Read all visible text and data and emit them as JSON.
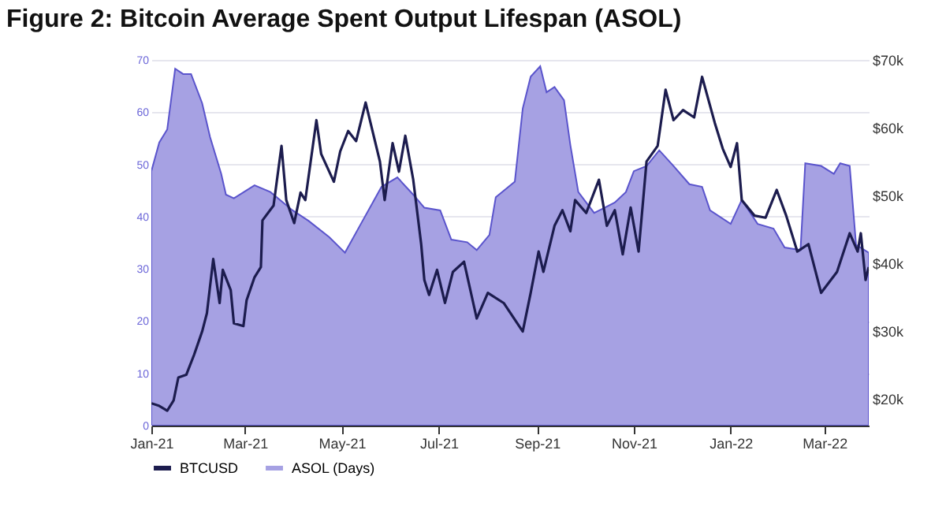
{
  "chart_data": {
    "type": "line",
    "title": "Figure 2: Bitcoin Average Spent Output Lifespan (ASOL)",
    "xlim": [
      "2021-01-01",
      "2022-03-29"
    ],
    "xticks": [
      {
        "value": "2021-01-01",
        "label": "Jan-21"
      },
      {
        "value": "2021-03-01",
        "label": "Mar-21"
      },
      {
        "value": "2021-05-01",
        "label": "May-21"
      },
      {
        "value": "2021-07-01",
        "label": "Jul-21"
      },
      {
        "value": "2021-09-01",
        "label": "Sep-21"
      },
      {
        "value": "2021-11-01",
        "label": "Nov-21"
      },
      {
        "value": "2022-01-01",
        "label": "Jan-22"
      },
      {
        "value": "2022-03-01",
        "label": "Mar-22"
      }
    ],
    "ylim": [
      0,
      70
    ],
    "yticks": [
      0,
      10,
      20,
      30,
      40,
      50,
      60,
      70
    ],
    "y2lim": [
      16000,
      70000
    ],
    "y2ticks": [
      {
        "value": 20000,
        "label": "$20k"
      },
      {
        "value": 30000,
        "label": "$30k"
      },
      {
        "value": 40000,
        "label": "$40k"
      },
      {
        "value": 50000,
        "label": "$50k"
      },
      {
        "value": 60000,
        "label": "$60k"
      },
      {
        "value": 70000,
        "label": "$70k"
      }
    ],
    "grid": "y",
    "legend": "bottom",
    "series": [
      {
        "name": "BTCUSD",
        "type": "line",
        "axis": "y2",
        "color": "#1c1c4e",
        "x": [
          "2021-01-01",
          "2021-01-06",
          "2021-01-11",
          "2021-01-15",
          "2021-01-18",
          "2021-01-23",
          "2021-01-28",
          "2021-02-02",
          "2021-02-05",
          "2021-02-09",
          "2021-02-13",
          "2021-02-15",
          "2021-02-20",
          "2021-02-22",
          "2021-02-28",
          "2021-03-02",
          "2021-03-07",
          "2021-03-11",
          "2021-03-12",
          "2021-03-19",
          "2021-03-24",
          "2021-03-27",
          "2021-04-01",
          "2021-04-05",
          "2021-04-08",
          "2021-04-15",
          "2021-04-18",
          "2021-04-26",
          "2021-04-30",
          "2021-05-05",
          "2021-05-10",
          "2021-05-16",
          "2021-05-25",
          "2021-05-28",
          "2021-06-02",
          "2021-06-06",
          "2021-06-10",
          "2021-06-15",
          "2021-06-20",
          "2021-06-22",
          "2021-06-25",
          "2021-06-30",
          "2021-07-05",
          "2021-07-10",
          "2021-07-17",
          "2021-07-25",
          "2021-08-01",
          "2021-08-11",
          "2021-08-23",
          "2021-08-28",
          "2021-09-02",
          "2021-09-05",
          "2021-09-12",
          "2021-09-17",
          "2021-09-22",
          "2021-09-25",
          "2021-10-02",
          "2021-10-10",
          "2021-10-15",
          "2021-10-20",
          "2021-10-25",
          "2021-10-30",
          "2021-11-04",
          "2021-11-09",
          "2021-11-16",
          "2021-11-21",
          "2021-11-26",
          "2021-12-02",
          "2021-12-09",
          "2021-12-14",
          "2021-12-22",
          "2021-12-27",
          "2022-01-01",
          "2022-01-05",
          "2022-01-08",
          "2022-01-16",
          "2022-01-23",
          "2022-01-30",
          "2022-02-05",
          "2022-02-12",
          "2022-02-19",
          "2022-02-27",
          "2022-03-09",
          "2022-03-17",
          "2022-03-22",
          "2022-03-24",
          "2022-03-27",
          "2022-03-29"
        ],
        "values": [
          19300,
          18900,
          18200,
          19700,
          23100,
          23500,
          26500,
          29900,
          32600,
          40600,
          34100,
          39000,
          36000,
          31100,
          30700,
          34500,
          37900,
          39400,
          46300,
          48500,
          57300,
          49300,
          45900,
          50400,
          49300,
          61100,
          56100,
          52000,
          56500,
          59500,
          58000,
          63700,
          55000,
          49300,
          57700,
          53500,
          58800,
          52300,
          42800,
          37500,
          35300,
          39000,
          34100,
          38700,
          40200,
          31800,
          35600,
          34100,
          29900,
          35600,
          41700,
          38700,
          45500,
          47800,
          44700,
          49300,
          47400,
          52300,
          45500,
          47800,
          41300,
          48200,
          41700,
          55000,
          57300,
          65600,
          61100,
          62600,
          61500,
          67500,
          60700,
          56900,
          54200,
          57700,
          49300,
          47000,
          46700,
          50800,
          47000,
          41700,
          42800,
          35600,
          38700,
          44400,
          41700,
          44400,
          37500,
          39400
        ]
      },
      {
        "name": "ASOL (Days)",
        "type": "area",
        "color": "#a6a1e3",
        "x": [
          "2021-01-01",
          "2021-01-06",
          "2021-01-11",
          "2021-01-16",
          "2021-01-21",
          "2021-01-26",
          "2021-02-02",
          "2021-02-07",
          "2021-02-14",
          "2021-02-17",
          "2021-02-22",
          "2021-03-07",
          "2021-03-17",
          "2021-03-31",
          "2021-04-10",
          "2021-04-23",
          "2021-05-03",
          "2021-05-13",
          "2021-05-26",
          "2021-06-05",
          "2021-06-15",
          "2021-06-22",
          "2021-07-02",
          "2021-07-09",
          "2021-07-19",
          "2021-07-25",
          "2021-08-02",
          "2021-08-06",
          "2021-08-18",
          "2021-08-23",
          "2021-08-28",
          "2021-09-03",
          "2021-09-07",
          "2021-09-12",
          "2021-09-18",
          "2021-09-22",
          "2021-09-27",
          "2021-10-07",
          "2021-10-20",
          "2021-10-27",
          "2021-11-01",
          "2021-11-09",
          "2021-11-17",
          "2021-11-26",
          "2021-12-06",
          "2021-12-14",
          "2021-12-19",
          "2022-01-01",
          "2022-01-08",
          "2022-01-18",
          "2022-01-28",
          "2022-02-04",
          "2022-02-14",
          "2022-02-17",
          "2022-02-27",
          "2022-03-07",
          "2022-03-11",
          "2022-03-17",
          "2022-03-21",
          "2022-03-29"
        ],
        "values": [
          48.7,
          54.2,
          56.7,
          68.3,
          67.3,
          67.3,
          61.7,
          55.2,
          48.2,
          44.2,
          43.5,
          46,
          44.7,
          41.2,
          39.2,
          36.1,
          33.1,
          38.6,
          45.7,
          47.5,
          44.2,
          41.7,
          41.2,
          35.6,
          35.1,
          33.6,
          36.5,
          43.7,
          46.7,
          60.7,
          66.8,
          68.8,
          63.8,
          64.8,
          62.3,
          53.7,
          44.7,
          40.7,
          42.7,
          44.7,
          48.7,
          49.7,
          52.7,
          49.7,
          46.2,
          45.7,
          41.2,
          38.6,
          43.2,
          38.6,
          37.7,
          34.1,
          33.6,
          50.2,
          49.7,
          48.2,
          50.2,
          49.7,
          34.6,
          33.1
        ]
      }
    ]
  }
}
